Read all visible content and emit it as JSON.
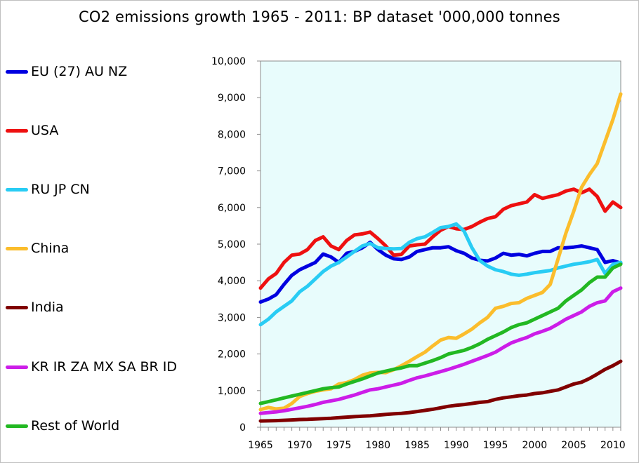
{
  "chart_data": {
    "type": "line",
    "title": "CO2 emissions growth 1965 - 2011: BP dataset   '000,000 tonnes",
    "xlabel": "",
    "ylabel": "",
    "xlim": [
      1965,
      2011
    ],
    "ylim": [
      0,
      10000
    ],
    "x_ticks": [
      1965,
      1970,
      1975,
      1980,
      1985,
      1990,
      1995,
      2000,
      2005,
      2010
    ],
    "y_ticks": [
      0,
      1000,
      2000,
      3000,
      4000,
      5000,
      6000,
      7000,
      8000,
      9000,
      10000
    ],
    "y_tick_labels": [
      "0",
      "1,000",
      "2,000",
      "3,000",
      "4,000",
      "5,000",
      "6,000",
      "7,000",
      "8,000",
      "9,000",
      "10,000"
    ],
    "legend_position": "left",
    "plot_background": "#e8fcfc",
    "series": [
      {
        "name": "EU (27) AU NZ",
        "color": "#0000e0",
        "x": [
          1965,
          1966,
          1967,
          1968,
          1969,
          1970,
          1971,
          1972,
          1973,
          1974,
          1975,
          1976,
          1977,
          1978,
          1979,
          1980,
          1981,
          1982,
          1983,
          1984,
          1985,
          1986,
          1987,
          1988,
          1989,
          1990,
          1991,
          1992,
          1993,
          1994,
          1995,
          1996,
          1997,
          1998,
          1999,
          2000,
          2001,
          2002,
          2003,
          2004,
          2005,
          2006,
          2007,
          2008,
          2009,
          2010,
          2011
        ],
        "y": [
          3420,
          3500,
          3620,
          3900,
          4150,
          4300,
          4400,
          4500,
          4730,
          4650,
          4500,
          4750,
          4800,
          4900,
          5050,
          4850,
          4700,
          4600,
          4580,
          4650,
          4800,
          4850,
          4900,
          4900,
          4930,
          4820,
          4750,
          4620,
          4560,
          4540,
          4620,
          4750,
          4700,
          4720,
          4680,
          4750,
          4800,
          4800,
          4900,
          4900,
          4920,
          4950,
          4900,
          4850,
          4500,
          4550,
          4480
        ]
      },
      {
        "name": "USA",
        "color": "#ee1010",
        "x": [
          1965,
          1966,
          1967,
          1968,
          1969,
          1970,
          1971,
          1972,
          1973,
          1974,
          1975,
          1976,
          1977,
          1978,
          1979,
          1980,
          1981,
          1982,
          1983,
          1984,
          1985,
          1986,
          1987,
          1988,
          1989,
          1990,
          1991,
          1992,
          1993,
          1994,
          1995,
          1996,
          1997,
          1998,
          1999,
          2000,
          2001,
          2002,
          2003,
          2004,
          2005,
          2006,
          2007,
          2008,
          2009,
          2010,
          2011
        ],
        "y": [
          3800,
          4050,
          4200,
          4500,
          4700,
          4730,
          4850,
          5100,
          5200,
          4950,
          4850,
          5100,
          5250,
          5280,
          5330,
          5150,
          4950,
          4700,
          4720,
          4950,
          4980,
          5000,
          5200,
          5380,
          5480,
          5420,
          5400,
          5480,
          5600,
          5700,
          5750,
          5950,
          6050,
          6100,
          6150,
          6350,
          6250,
          6300,
          6350,
          6450,
          6500,
          6400,
          6500,
          6300,
          5900,
          6150,
          6000
        ]
      },
      {
        "name": "RU JP CN",
        "color": "#28ccf4",
        "x": [
          1965,
          1966,
          1967,
          1968,
          1969,
          1970,
          1971,
          1972,
          1973,
          1974,
          1975,
          1976,
          1977,
          1978,
          1979,
          1980,
          1981,
          1982,
          1983,
          1984,
          1985,
          1986,
          1987,
          1988,
          1989,
          1990,
          1991,
          1992,
          1993,
          1994,
          1995,
          1996,
          1997,
          1998,
          1999,
          2000,
          2001,
          2002,
          2003,
          2004,
          2005,
          2006,
          2007,
          2008,
          2009,
          2010,
          2011
        ],
        "y": [
          2800,
          2950,
          3150,
          3300,
          3450,
          3700,
          3850,
          4050,
          4250,
          4400,
          4500,
          4650,
          4800,
          4950,
          5020,
          4900,
          4880,
          4870,
          4880,
          5050,
          5150,
          5200,
          5320,
          5450,
          5480,
          5550,
          5350,
          4900,
          4550,
          4400,
          4300,
          4250,
          4180,
          4150,
          4180,
          4220,
          4250,
          4280,
          4350,
          4400,
          4450,
          4480,
          4520,
          4580,
          4200,
          4450,
          4500
        ]
      },
      {
        "name": "China",
        "color": "#fbbd2c",
        "x": [
          1965,
          1966,
          1967,
          1968,
          1969,
          1970,
          1971,
          1972,
          1973,
          1974,
          1975,
          1976,
          1977,
          1978,
          1979,
          1980,
          1981,
          1982,
          1983,
          1984,
          1985,
          1986,
          1987,
          1988,
          1989,
          1990,
          1991,
          1992,
          1993,
          1994,
          1995,
          1996,
          1997,
          1998,
          1999,
          2000,
          2001,
          2002,
          2003,
          2004,
          2005,
          2006,
          2007,
          2008,
          2009,
          2010,
          2011
        ],
        "y": [
          480,
          540,
          500,
          520,
          650,
          840,
          920,
          980,
          1020,
          1050,
          1180,
          1220,
          1300,
          1420,
          1480,
          1500,
          1490,
          1570,
          1680,
          1800,
          1930,
          2050,
          2220,
          2380,
          2450,
          2430,
          2550,
          2680,
          2850,
          3000,
          3250,
          3300,
          3380,
          3400,
          3520,
          3600,
          3680,
          3900,
          4600,
          5300,
          5900,
          6550,
          6900,
          7200,
          7800,
          8400,
          9100
        ]
      },
      {
        "name": "India",
        "color": "#800000",
        "x": [
          1965,
          1966,
          1967,
          1968,
          1969,
          1970,
          1971,
          1972,
          1973,
          1974,
          1975,
          1976,
          1977,
          1978,
          1979,
          1980,
          1981,
          1982,
          1983,
          1984,
          1985,
          1986,
          1987,
          1988,
          1989,
          1990,
          1991,
          1992,
          1993,
          1994,
          1995,
          1996,
          1997,
          1998,
          1999,
          2000,
          2001,
          2002,
          2003,
          2004,
          2005,
          2006,
          2007,
          2008,
          2009,
          2010,
          2011
        ],
        "y": [
          170,
          175,
          180,
          190,
          200,
          210,
          215,
          225,
          235,
          245,
          260,
          275,
          290,
          300,
          310,
          330,
          350,
          365,
          380,
          400,
          430,
          460,
          490,
          530,
          570,
          600,
          620,
          650,
          680,
          700,
          760,
          800,
          830,
          860,
          880,
          920,
          940,
          980,
          1020,
          1100,
          1180,
          1230,
          1330,
          1450,
          1580,
          1680,
          1800
        ]
      },
      {
        "name": "KR  IR  ZA  MX  SA  BR  ID",
        "color": "#cc1de8",
        "x": [
          1965,
          1966,
          1967,
          1968,
          1969,
          1970,
          1971,
          1972,
          1973,
          1974,
          1975,
          1976,
          1977,
          1978,
          1979,
          1980,
          1981,
          1982,
          1983,
          1984,
          1985,
          1986,
          1987,
          1988,
          1989,
          1990,
          1991,
          1992,
          1993,
          1994,
          1995,
          1996,
          1997,
          1998,
          1999,
          2000,
          2001,
          2002,
          2003,
          2004,
          2005,
          2006,
          2007,
          2008,
          2009,
          2010,
          2011
        ],
        "y": [
          380,
          400,
          420,
          450,
          490,
          530,
          570,
          620,
          680,
          720,
          760,
          820,
          880,
          950,
          1020,
          1050,
          1100,
          1150,
          1200,
          1280,
          1350,
          1400,
          1460,
          1520,
          1580,
          1650,
          1720,
          1800,
          1880,
          1960,
          2050,
          2180,
          2300,
          2380,
          2450,
          2550,
          2620,
          2700,
          2820,
          2950,
          3050,
          3150,
          3300,
          3400,
          3450,
          3700,
          3800
        ]
      },
      {
        "name": "Rest of World",
        "color": "#22b822",
        "x": [
          1965,
          1966,
          1967,
          1968,
          1969,
          1970,
          1971,
          1972,
          1973,
          1974,
          1975,
          1976,
          1977,
          1978,
          1979,
          1980,
          1981,
          1982,
          1983,
          1984,
          1985,
          1986,
          1987,
          1988,
          1989,
          1990,
          1991,
          1992,
          1993,
          1994,
          1995,
          1996,
          1997,
          1998,
          1999,
          2000,
          2001,
          2002,
          2003,
          2004,
          2005,
          2006,
          2007,
          2008,
          2009,
          2010,
          2011
        ],
        "y": [
          650,
          700,
          750,
          800,
          850,
          900,
          950,
          1000,
          1050,
          1080,
          1100,
          1180,
          1250,
          1320,
          1400,
          1480,
          1530,
          1580,
          1620,
          1680,
          1680,
          1750,
          1820,
          1900,
          2000,
          2050,
          2100,
          2180,
          2280,
          2400,
          2500,
          2600,
          2720,
          2800,
          2850,
          2950,
          3050,
          3150,
          3250,
          3450,
          3600,
          3750,
          3950,
          4100,
          4100,
          4350,
          4450
        ]
      }
    ]
  }
}
